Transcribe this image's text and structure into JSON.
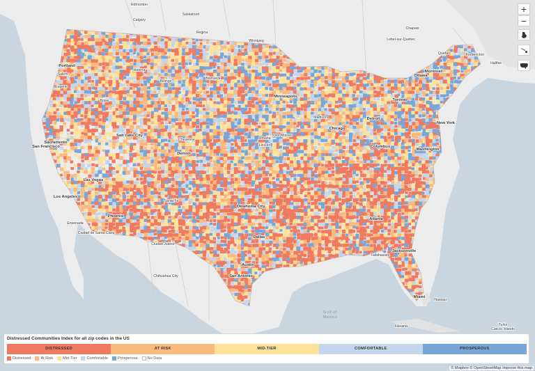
{
  "colors": {
    "distressed": "#f07a5f",
    "at_risk": "#fcb97c",
    "mid_tier": "#fde29a",
    "comfortable": "#c3d6ec",
    "prosperous": "#79a6d8",
    "no_data": "#ffffff",
    "water": "#c9d5df",
    "land": "#ececec"
  },
  "controls": {
    "zoom_in": "+",
    "zoom_out": "−",
    "icons": [
      "alaska-icon",
      "hawaii-icon",
      "conus-icon"
    ]
  },
  "cities": [
    {
      "name": "Calgary"
    },
    {
      "name": "Saskatoon"
    },
    {
      "name": "Regina"
    },
    {
      "name": "Winnipeg"
    },
    {
      "name": "Edmonton"
    },
    {
      "name": "Chapais"
    },
    {
      "name": "Lebel-sur-Québec"
    },
    {
      "name": "Québec"
    },
    {
      "name": "Fredericton"
    },
    {
      "name": "Ottawa"
    },
    {
      "name": "Montreal"
    },
    {
      "name": "Toronto"
    },
    {
      "name": "Halifax"
    },
    {
      "name": "Portland"
    },
    {
      "name": "Salem"
    },
    {
      "name": "Eugene"
    },
    {
      "name": "Boise"
    },
    {
      "name": "Helena"
    },
    {
      "name": "Billings"
    },
    {
      "name": "Bismarck"
    },
    {
      "name": "Minneapolis"
    },
    {
      "name": "Madison"
    },
    {
      "name": "Detroit"
    },
    {
      "name": "Chicago"
    },
    {
      "name": "Sacramento"
    },
    {
      "name": "San Francisco"
    },
    {
      "name": "Salt Lake City"
    },
    {
      "name": "Cheyenne"
    },
    {
      "name": "Denver"
    },
    {
      "name": "Omaha"
    },
    {
      "name": "Lincoln"
    },
    {
      "name": "Des Moines"
    },
    {
      "name": "Columbus"
    },
    {
      "name": "New York"
    },
    {
      "name": "Washington"
    },
    {
      "name": "Las Vegas"
    },
    {
      "name": "Los Angeles"
    },
    {
      "name": "Santa Fe"
    },
    {
      "name": "Phoenix"
    },
    {
      "name": "Oklahoma City"
    },
    {
      "name": "Atlanta"
    },
    {
      "name": "Dallas"
    },
    {
      "name": "Ciudad Juárez"
    },
    {
      "name": "Jacksonville"
    },
    {
      "name": "Tallahassee"
    },
    {
      "name": "Austin"
    },
    {
      "name": "San Antonio"
    },
    {
      "name": "Miami"
    },
    {
      "name": "Ensenada"
    },
    {
      "name": "Ciudad de Santa Clara"
    },
    {
      "name": "Chihuahua City"
    },
    {
      "name": "Havana"
    },
    {
      "name": "Nassau"
    },
    {
      "name": "Gulf of Mexico"
    },
    {
      "name": "Turks"
    },
    {
      "name": "Caicos Islands"
    }
  ],
  "legend": {
    "title": "Distressed Communities Index for all zip codes in the US",
    "tiers": [
      "DISTRESSED",
      "AT RISK",
      "MID-TIER",
      "COMFORTABLE",
      "PROSPEROUS"
    ],
    "keys": [
      "Distressed",
      "At Risk",
      "Mid-Tier",
      "Comfortable",
      "Prosperous",
      "No Data"
    ]
  },
  "attribution": "© Mapbox © OpenStreetMap  Improve this map"
}
